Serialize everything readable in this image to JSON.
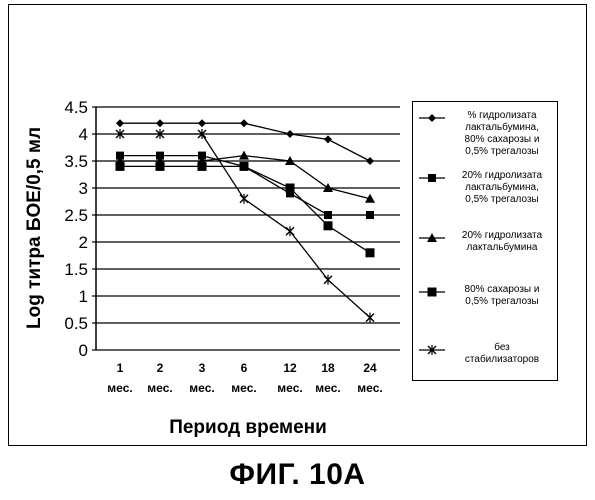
{
  "figure_caption": "ФИГ. 10A",
  "chart_data": {
    "type": "line",
    "xlabel": "Период времени",
    "ylabel": "Log титра БОЕ/0,5 мл",
    "ylim": [
      0,
      4.5
    ],
    "yticks": [
      "0",
      "0.5",
      "1",
      "1.5",
      "2",
      "2.5",
      "3",
      "3.5",
      "4",
      "4.5"
    ],
    "grid": true,
    "legend_position": "right",
    "categories": [
      "1 мес.",
      "2 мес.",
      "3 мес.",
      "6 мес.",
      "12 мес.",
      "18 мес.",
      "24 мес."
    ],
    "x_tick_top": [
      "1",
      "2",
      "3",
      "6",
      "12",
      "18",
      "24"
    ],
    "x_tick_bottom": [
      "мес.",
      "мес.",
      "мес.",
      "мес.",
      "мес.",
      "мес.",
      "мес."
    ],
    "series": [
      {
        "name": "% гидролизата лактальбумина, 80% сахарозы и 0,5% трегалозы",
        "name_lines": [
          "% гидролизата",
          "лактальбумина,",
          "80% сахарозы и",
          "0,5% трегалозы"
        ],
        "marker": "diamond",
        "values": [
          4.2,
          4.2,
          4.2,
          4.2,
          4.0,
          3.9,
          3.5
        ]
      },
      {
        "name": "20% гидролизата лактальбумина, 0,5% трегалозы",
        "name_lines": [
          "20% гидролизата",
          "лактальбумина,",
          "0,5% трегалозы"
        ],
        "marker": "square",
        "values": [
          3.6,
          3.6,
          3.6,
          3.4,
          2.9,
          2.5,
          2.5
        ]
      },
      {
        "name": "20% гидролизата лактальбумина",
        "name_lines": [
          "20% гидролизата",
          "лактальбумина"
        ],
        "marker": "triangle",
        "values": [
          3.5,
          3.5,
          3.5,
          3.6,
          3.5,
          3.0,
          2.8
        ]
      },
      {
        "name": "80% сахарозы и 0,5% трегалозы",
        "name_lines": [
          "80% сахарозы и",
          "0,5% трегалозы"
        ],
        "marker": "square-large",
        "values": [
          3.4,
          3.4,
          3.4,
          3.4,
          3.0,
          2.3,
          1.8
        ]
      },
      {
        "name": "без стабилизаторов",
        "name_lines": [
          "без",
          "стабилизаторов"
        ],
        "marker": "star",
        "values": [
          4.0,
          4.0,
          4.0,
          2.8,
          2.2,
          1.3,
          0.6
        ]
      }
    ]
  }
}
